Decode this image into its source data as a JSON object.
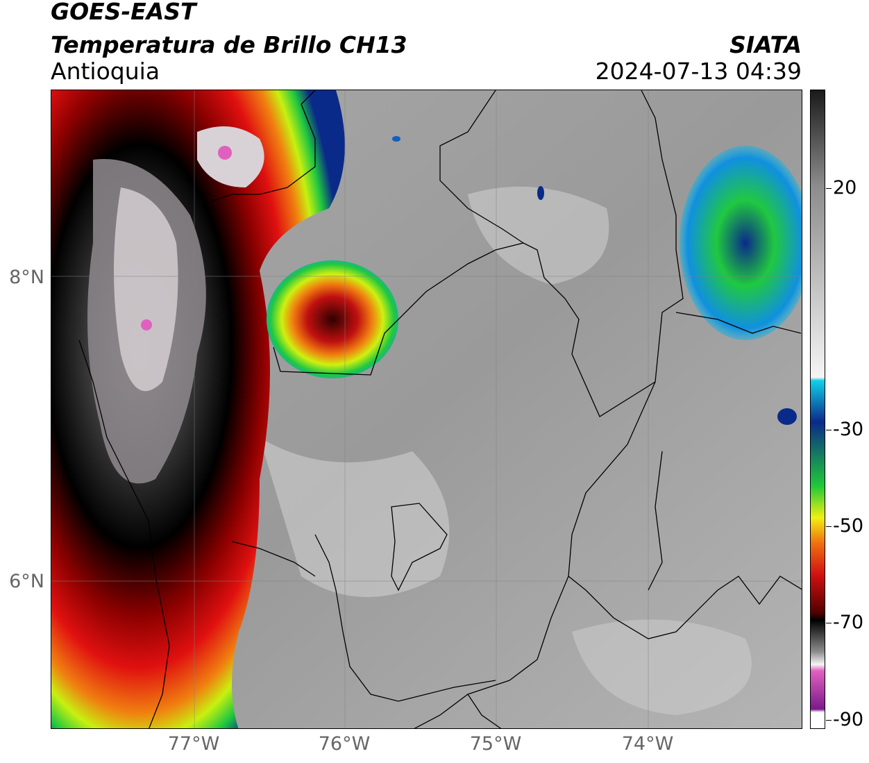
{
  "header": {
    "satellite": "GOES-EAST",
    "product": "Temperatura de Brillo CH13",
    "region": "Antioquia",
    "agency": "SIATA",
    "datetime": "2024-07-13 04:39"
  },
  "axes": {
    "lat_labels": [
      "8°N",
      "6°N"
    ],
    "lon_labels": [
      "77°W",
      "76°W",
      "75°W",
      "74°W"
    ]
  },
  "colorbar": {
    "labels": [
      "20",
      "-30",
      "-50",
      "-70",
      "-90"
    ],
    "range": [
      -90,
      32
    ],
    "colors": {
      "warm_top": "#1a1a1a",
      "warm_mid": "#8c8c8c",
      "warm_low": "#f5f5f5",
      "cyan": "#10d0e8",
      "blue": "#0a2a8a",
      "green": "#1fc83a",
      "yellow": "#f0f010",
      "orange": "#f07010",
      "red": "#d01010",
      "darkred": "#500000",
      "black": "#000000",
      "pink": "#e060c0",
      "purple": "#7a1a8a"
    }
  }
}
